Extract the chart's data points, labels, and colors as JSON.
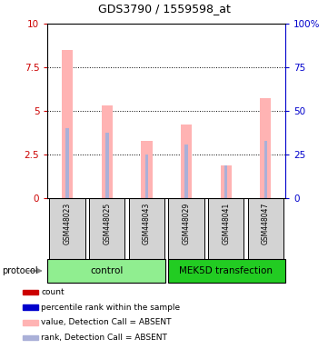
{
  "title": "GDS3790 / 1559598_at",
  "samples": [
    "GSM448023",
    "GSM448025",
    "GSM448043",
    "GSM448029",
    "GSM448041",
    "GSM448047"
  ],
  "pink_bar_heights": [
    8.5,
    5.3,
    3.25,
    4.2,
    1.85,
    5.7
  ],
  "blue_bar_heights": [
    4.0,
    3.75,
    2.5,
    3.05,
    1.85,
    3.25
  ],
  "pink_color": "#ffb3b3",
  "blue_color": "#aab0d8",
  "left_ylim": [
    0,
    10
  ],
  "right_ylim": [
    0,
    100
  ],
  "left_yticks": [
    0,
    2.5,
    5.0,
    7.5,
    10
  ],
  "left_yticklabels": [
    "0",
    "2.5",
    "5",
    "7.5",
    "10"
  ],
  "right_yticks": [
    0,
    25,
    50,
    75,
    100
  ],
  "right_yticklabels": [
    "0",
    "25",
    "50",
    "75",
    "100%"
  ],
  "left_tick_color": "#cc0000",
  "right_tick_color": "#0000cc",
  "control_color": "#90ee90",
  "mek5d_color": "#22cc22",
  "control_label": "control",
  "mek5d_label": "MEK5D transfection",
  "protocol_label": "protocol",
  "sample_box_color": "#d3d3d3",
  "legend_items": [
    {
      "label": "count",
      "color": "#cc0000"
    },
    {
      "label": "percentile rank within the sample",
      "color": "#0000cc"
    },
    {
      "label": "value, Detection Call = ABSENT",
      "color": "#ffb3b3"
    },
    {
      "label": "rank, Detection Call = ABSENT",
      "color": "#aab0d8"
    }
  ],
  "n_control": 3,
  "n_mek5d": 3
}
